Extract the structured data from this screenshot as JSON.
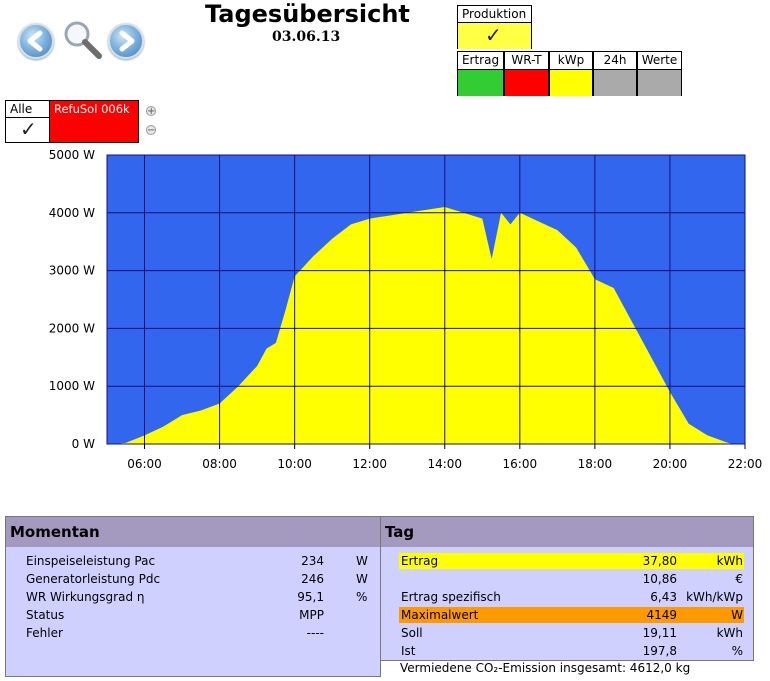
{
  "header": {
    "title": "Tagesübersicht",
    "date": "03.06.13",
    "nav": {
      "back_icon": "arrow-left-icon",
      "search_icon": "magnifier-icon",
      "forward_icon": "arrow-right-icon"
    }
  },
  "production": {
    "label": "Produktion",
    "tabs": [
      {
        "label": "Ertrag",
        "color": "#33cc33"
      },
      {
        "label": "WR-T",
        "color": "#ff0000"
      },
      {
        "label": "kWp",
        "color": "#ffff00"
      },
      {
        "label": "24h",
        "color": "#aaaaaa"
      },
      {
        "label": "Werte",
        "color": "#aaaaaa"
      }
    ]
  },
  "inverters": {
    "all_label": "Alle",
    "inverter_label": "RefuSol 006k",
    "inverter_color": "#ff0000",
    "plus": "+",
    "minus": "−"
  },
  "chart_data": {
    "type": "area",
    "background": "#3366ee",
    "fill": "#ffff00",
    "grid": true,
    "ylim": [
      0,
      5000
    ],
    "xlim": [
      "05:00",
      "22:00"
    ],
    "yticks": [
      "0 W",
      "1000 W",
      "2000 W",
      "3000 W",
      "4000 W",
      "5000 W"
    ],
    "xticks": [
      "06:00",
      "08:00",
      "10:00",
      "12:00",
      "14:00",
      "16:00",
      "18:00",
      "20:00",
      "22:00"
    ],
    "x": [
      "05:30",
      "06:00",
      "06:30",
      "07:00",
      "07:30",
      "08:00",
      "08:30",
      "09:00",
      "09:15",
      "09:30",
      "09:45",
      "10:00",
      "10:30",
      "11:00",
      "11:30",
      "12:00",
      "12:30",
      "13:00",
      "13:30",
      "14:00",
      "14:30",
      "15:00",
      "15:15",
      "15:30",
      "15:45",
      "16:00",
      "16:30",
      "17:00",
      "17:30",
      "18:00",
      "18:30",
      "19:00",
      "19:30",
      "20:00",
      "20:30",
      "21:00",
      "21:30"
    ],
    "values": [
      20,
      150,
      300,
      500,
      580,
      700,
      1000,
      1350,
      1650,
      1750,
      2300,
      2900,
      3250,
      3550,
      3800,
      3900,
      3950,
      4000,
      4050,
      4100,
      4000,
      3900,
      3200,
      4000,
      3800,
      4000,
      3850,
      3700,
      3400,
      2850,
      2700,
      2100,
      1500,
      900,
      350,
      150,
      30
    ]
  },
  "momentan": {
    "title": "Momentan",
    "rows": [
      {
        "label": "Einspeiseleistung Pac",
        "value": "234",
        "unit": "W"
      },
      {
        "label": "Generatorleistung Pdc",
        "value": "246",
        "unit": "W"
      },
      {
        "label": "WR Wirkungsgrad η",
        "value": "95,1",
        "unit": "%"
      },
      {
        "label": "Status",
        "value": "MPP",
        "unit": ""
      },
      {
        "label": "Fehler",
        "value": "----",
        "unit": ""
      }
    ]
  },
  "tag": {
    "title": "Tag",
    "rows": [
      {
        "label": "Ertrag",
        "value": "37,80",
        "unit": "kWh",
        "highlight": "#ffff00"
      },
      {
        "label": "",
        "value": "10,86",
        "unit": "€",
        "highlight": ""
      },
      {
        "label": "Ertrag spezifisch",
        "value": "6,43",
        "unit": "kWh/kWp",
        "highlight": ""
      },
      {
        "label": "Maximalwert",
        "value": "4149",
        "unit": "W",
        "highlight": "#ff9900"
      },
      {
        "label": "Soll",
        "value": "19,11",
        "unit": "kWh",
        "highlight": ""
      },
      {
        "label": "Ist",
        "value": "197,8",
        "unit": "%",
        "highlight": ""
      }
    ],
    "co2": "Vermiedene CO₂-Emission insgesamt: 4612,0 kg"
  }
}
